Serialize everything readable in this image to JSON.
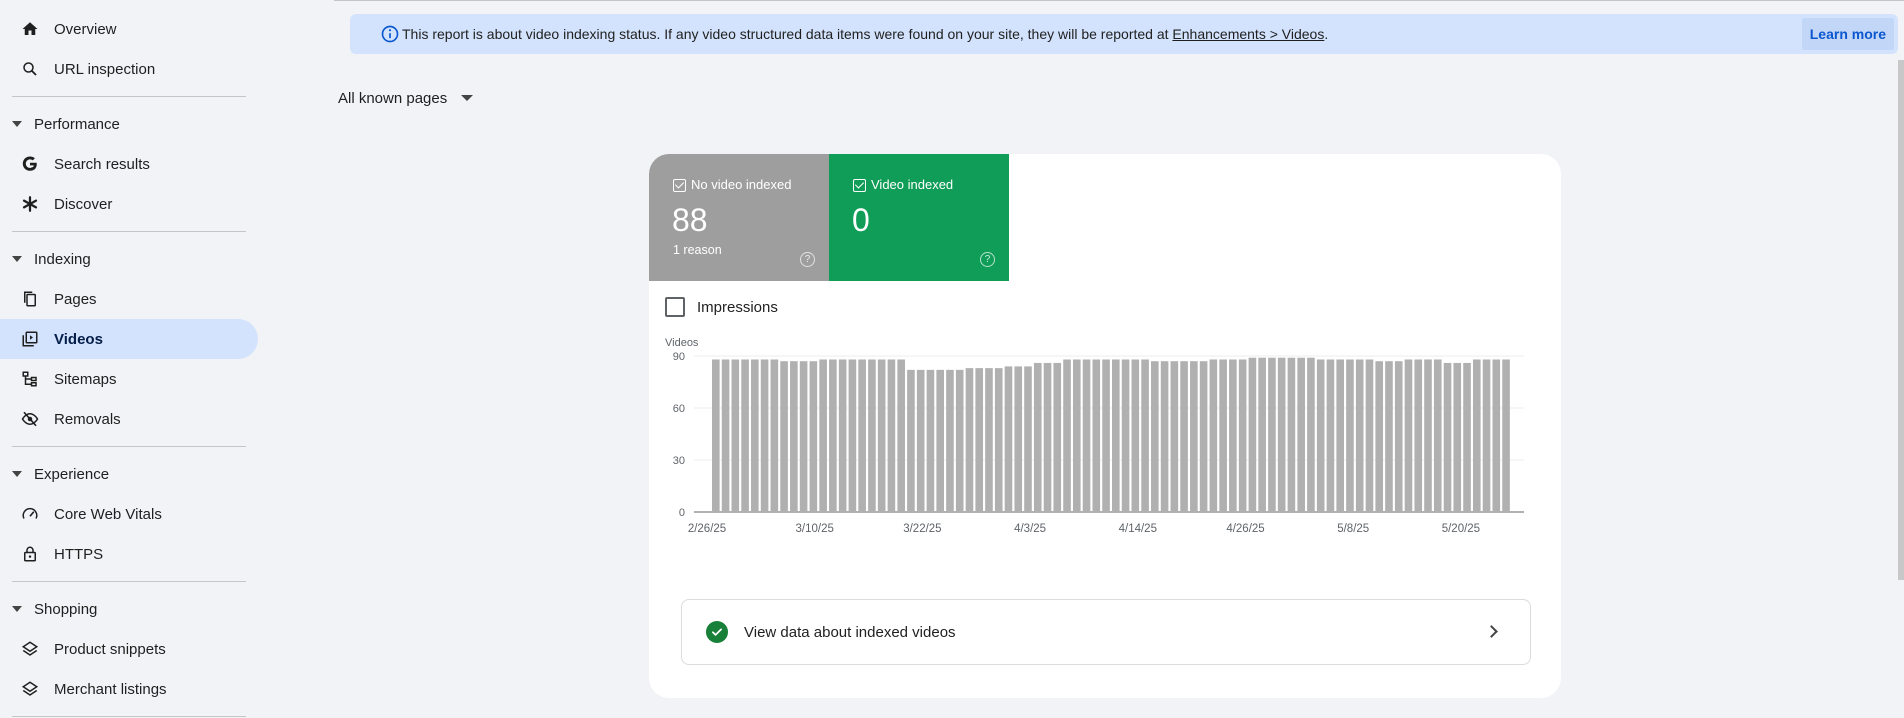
{
  "sidebar": {
    "overview": "Overview",
    "url_inspection": "URL inspection",
    "performance": "Performance",
    "search_results": "Search results",
    "discover": "Discover",
    "indexing": "Indexing",
    "pages": "Pages",
    "videos": "Videos",
    "sitemaps": "Sitemaps",
    "removals": "Removals",
    "experience": "Experience",
    "core_web_vitals": "Core Web Vitals",
    "https": "HTTPS",
    "shopping": "Shopping",
    "product_snippets": "Product snippets",
    "merchant_listings": "Merchant listings"
  },
  "banner": {
    "text": "This report is about video indexing status. If any video structured data items were found on your site, they will be reported at ",
    "link": "Enhancements > Videos",
    "suffix": ".",
    "learn_more": "Learn more"
  },
  "filter": {
    "label": "All known pages"
  },
  "tiles": {
    "no_video": {
      "label": "No video indexed",
      "value": "88",
      "sub": "1 reason",
      "help": "?"
    },
    "video": {
      "label": "Video indexed",
      "value": "0",
      "help": "?"
    }
  },
  "impressions_label": "Impressions",
  "view_data_label": "View data about indexed videos",
  "chart_data": {
    "type": "bar",
    "ylabel": "Videos",
    "ylim": [
      0,
      90
    ],
    "yticks": [
      0,
      30,
      60,
      90
    ],
    "xtick_labels": [
      "2/26/25",
      "3/10/25",
      "3/22/25",
      "4/3/25",
      "4/14/25",
      "4/26/25",
      "5/8/25",
      "5/20/25"
    ],
    "x_start": "2/26/25",
    "series": [
      {
        "color": "#b0b0b0",
        "values": [
          88,
          88,
          88,
          88,
          88,
          88,
          88,
          87,
          87,
          87,
          87,
          88,
          88,
          88,
          88,
          88,
          88,
          88,
          88,
          88,
          82,
          82,
          82,
          82,
          82,
          82,
          83,
          83,
          83,
          83,
          84,
          84,
          84,
          86,
          86,
          86,
          88,
          88,
          88,
          88,
          88,
          88,
          88,
          88,
          88,
          87,
          87,
          87,
          87,
          87,
          87,
          88,
          88,
          88,
          88,
          89,
          89,
          89,
          89,
          89,
          89,
          89,
          88,
          88,
          88,
          88,
          88,
          88,
          87,
          87,
          87,
          88,
          88,
          88,
          88,
          86,
          86,
          86,
          88,
          88,
          88,
          88
        ]
      }
    ]
  },
  "colors": {
    "accent": "#0b57d0",
    "banner_bg": "#d3e3fd",
    "active_nav": "#d3e3fd",
    "tile_gray": "#9e9e9e",
    "tile_green": "#0f9d58"
  }
}
